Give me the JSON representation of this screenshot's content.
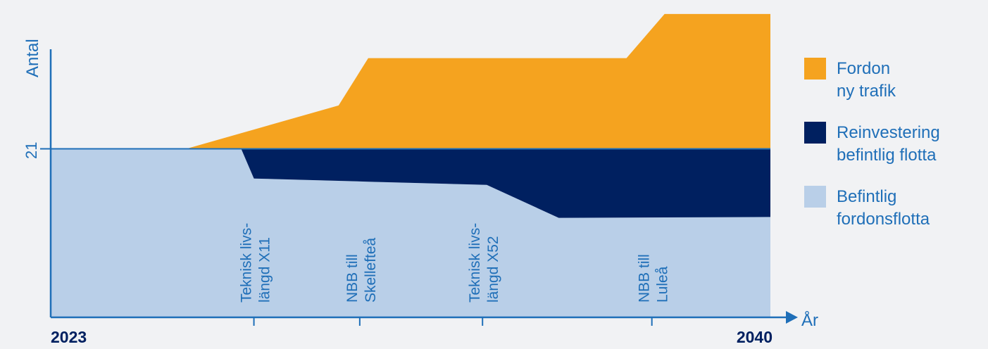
{
  "chart_data": {
    "type": "area",
    "stacked": true,
    "ylabel": "Antal",
    "xlabel": "År",
    "x_start_label": "2023",
    "x_end_label": "2040",
    "y_tick_label": "21",
    "y_reference": 21,
    "ylim": [
      0,
      37
    ],
    "xlim": [
      2023,
      2040
    ],
    "grid": false,
    "legend_position": "right",
    "series": [
      {
        "name": "Befintlig fordonsflotta",
        "color": "#b9cfe8",
        "points": [
          [
            2023,
            21
          ],
          [
            2027.5,
            21
          ],
          [
            2027.8,
            17.3
          ],
          [
            2033.3,
            16.5
          ],
          [
            2035,
            12.4
          ],
          [
            2040,
            12.5
          ]
        ]
      },
      {
        "name": "Reinvestering befintlig flotta",
        "color": "#002060",
        "points": [
          [
            2023,
            0
          ],
          [
            2027.5,
            0
          ],
          [
            2027.8,
            3.7
          ],
          [
            2033.3,
            4.5
          ],
          [
            2035,
            8.6
          ],
          [
            2040,
            8.5
          ]
        ]
      },
      {
        "name": "Fordon ny trafik",
        "color": "#f5a31f",
        "points": [
          [
            2023,
            0
          ],
          [
            2026.2,
            0
          ],
          [
            2029.8,
            5.4
          ],
          [
            2030.5,
            11.3
          ],
          [
            2036.6,
            11.3
          ],
          [
            2037.5,
            16.8
          ],
          [
            2040,
            16.8
          ]
        ]
      }
    ],
    "markers": [
      {
        "x": 2027.8,
        "lines": [
          "Teknisk livs-",
          "längd X11"
        ]
      },
      {
        "x": 2030.3,
        "lines": [
          "NBB till",
          "Skellefteå"
        ]
      },
      {
        "x": 2033.2,
        "lines": [
          "Teknisk livs-",
          "längd X52"
        ]
      },
      {
        "x": 2037.2,
        "lines": [
          "NBB till",
          "Luleå"
        ]
      }
    ]
  },
  "legend": [
    {
      "color": "#f5a31f",
      "lines": [
        "Fordon",
        "ny trafik"
      ]
    },
    {
      "color": "#002060",
      "lines": [
        "Reinvestering",
        "befintlig flotta"
      ]
    },
    {
      "color": "#b9cfe8",
      "lines": [
        "Befintlig",
        "fordonsflotta"
      ]
    }
  ],
  "colors": {
    "axis": "#1f6fb8",
    "text": "#1f6fb8",
    "bold_text": "#002060"
  }
}
